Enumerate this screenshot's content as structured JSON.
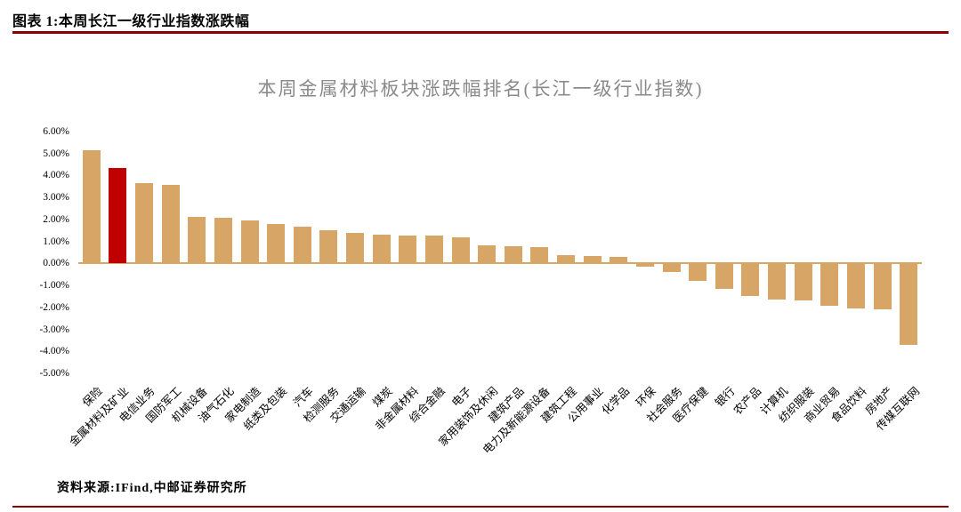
{
  "header": {
    "caption": "图表 1:本周长江一级行业指数涨跌幅"
  },
  "footer": {
    "source": "资料来源:IFind,中邮证券研究所"
  },
  "colors": {
    "accent_line": "#8B0000"
  },
  "chart_data": {
    "type": "bar",
    "title": "本周金属材料板块涨跌幅排名(长江一级行业指数)",
    "xlabel": "",
    "ylabel": "",
    "ylim": [
      -5,
      6
    ],
    "ytick_step": 1,
    "ytick_suffix": "%",
    "grid": "off",
    "legend": "none",
    "bar_color": "#D7A667",
    "highlight_color": "#C00000",
    "axis_color": "#D7A667",
    "highlight_index": 1,
    "categories": [
      "保险",
      "金属材料及矿业",
      "电信业务",
      "国防军工",
      "机械设备",
      "油气石化",
      "家电制造",
      "纸类及包装",
      "汽车",
      "检测服务",
      "交通运输",
      "煤炭",
      "非金属材料",
      "综合金融",
      "电子",
      "家用装饰及休闲",
      "建筑产品",
      "电力及新能源设备",
      "建筑工程",
      "公用事业",
      "化学品",
      "环保",
      "社会服务",
      "医疗保健",
      "银行",
      "农产品",
      "计算机",
      "纺织服装",
      "商业贸易",
      "食品饮料",
      "房地产",
      "传媒互联网"
    ],
    "values": [
      5.14,
      4.33,
      3.64,
      3.56,
      2.1,
      2.06,
      1.94,
      1.78,
      1.66,
      1.5,
      1.38,
      1.3,
      1.28,
      1.25,
      1.17,
      0.81,
      0.77,
      0.73,
      0.36,
      0.32,
      0.28,
      -0.12,
      -0.36,
      -0.77,
      -1.1,
      -1.46,
      -1.62,
      -1.63,
      -1.9,
      -2.02,
      -2.06,
      -3.68
    ]
  }
}
